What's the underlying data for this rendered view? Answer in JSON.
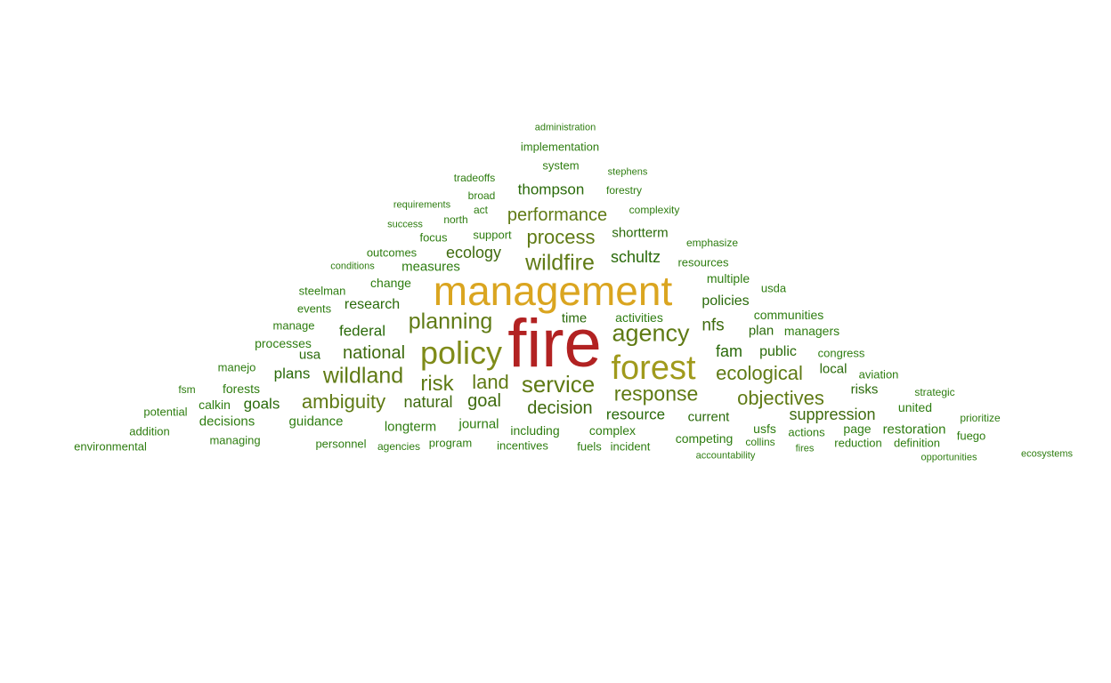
{
  "palette": {
    "c1": "#b22222",
    "c2": "#daa520",
    "c3": "#a09a1c",
    "c4": "#7f8b19",
    "c5": "#5f7a14",
    "c6": "#3f6b0f",
    "c7": "#2a6a0a",
    "c8": "#2e7d10"
  },
  "words": [
    "fire",
    "management",
    "forest",
    "policy",
    "agency",
    "wildfire",
    "service",
    "planning",
    "wildland",
    "process",
    "risk",
    "land",
    "response",
    "performance",
    "ambiguity",
    "objectives",
    "decision",
    "ecological",
    "national",
    "suppression",
    "goal",
    "natural",
    "ecology",
    "schultz",
    "thompson",
    "federal",
    "nfs",
    "research",
    "goals",
    "plans",
    "policies",
    "resource",
    "journal",
    "fam",
    "longterm",
    "public",
    "guidance",
    "decisions",
    "measures",
    "current",
    "shortterm",
    "time",
    "plan",
    "local",
    "risks",
    "usa",
    "activities",
    "restoration",
    "including",
    "complex",
    "competing",
    "change",
    "communities",
    "managers",
    "forests",
    "page",
    "united",
    "calkin",
    "processes",
    "multiple",
    "usfs",
    "actions",
    "program",
    "incentives",
    "fuels",
    "incident",
    "reduction",
    "definition",
    "fuego",
    "strategic",
    "prioritize",
    "usda",
    "implementation",
    "system",
    "support",
    "focus",
    "outcomes",
    "steelman",
    "events",
    "manage",
    "manejo",
    "fsm",
    "potential",
    "addition",
    "managing",
    "personnel",
    "agencies",
    "environmental",
    "congress",
    "aviation",
    "collins",
    "emphasize",
    "resources",
    "administration",
    "stephens",
    "forestry",
    "complexity",
    "tradeoffs",
    "broad",
    "act",
    "north",
    "requirements",
    "success",
    "conditions",
    "accountability",
    "fires",
    "opportunities",
    "ecosystems"
  ]
}
